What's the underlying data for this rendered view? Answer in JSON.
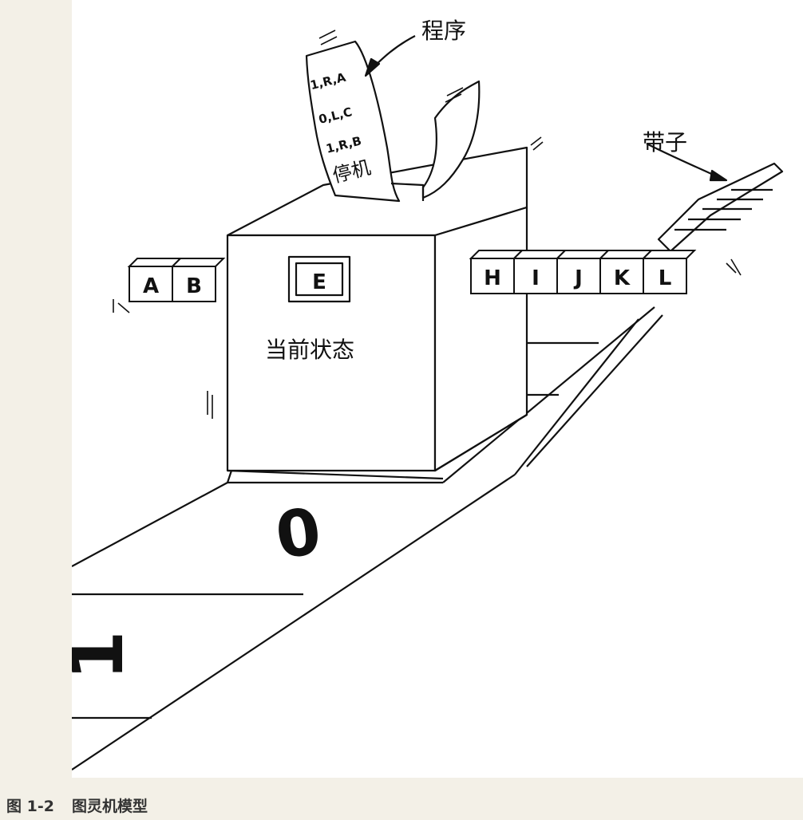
{
  "labels": {
    "program": "程序",
    "tape": "带子",
    "current_state": "当前状态"
  },
  "program_card": {
    "lines": [
      "1,R,A",
      "0,L,C",
      "1,R,B",
      "停机"
    ]
  },
  "state_symbol": "E",
  "tape_left_cells": [
    "A",
    "B"
  ],
  "tape_right_cells": [
    "H",
    "I",
    "J",
    "K",
    "L"
  ],
  "ground_tape_digits": [
    "0",
    "1"
  ],
  "caption": {
    "number": "图 1-2",
    "title": "图灵机模型"
  }
}
